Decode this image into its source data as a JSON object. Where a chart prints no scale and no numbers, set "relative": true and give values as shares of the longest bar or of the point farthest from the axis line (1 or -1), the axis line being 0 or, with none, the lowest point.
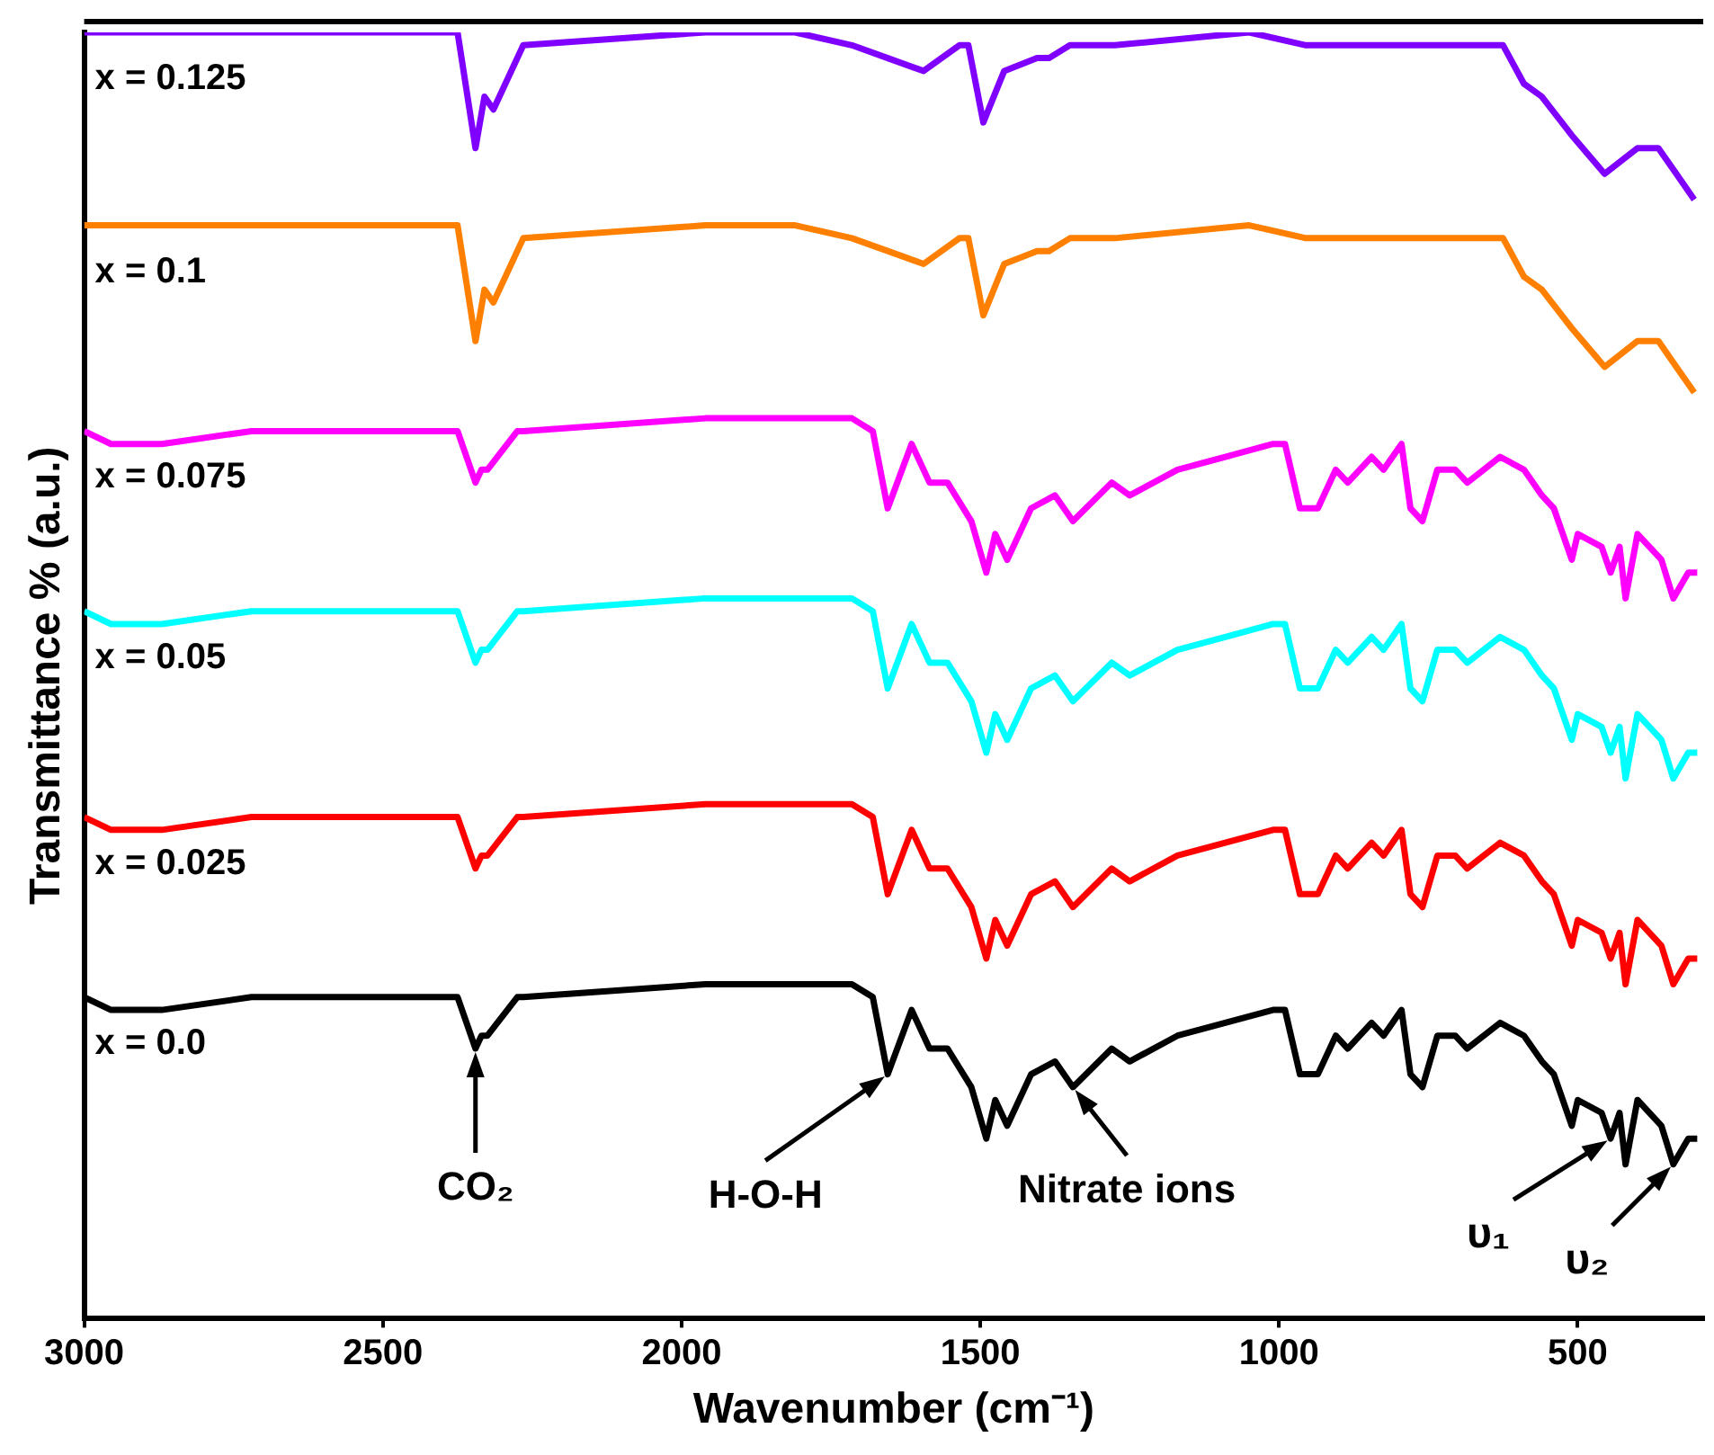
{
  "chart_data": {
    "type": "line",
    "xlabel": "Wavenumber (cm⁻¹)",
    "ylabel": "Transmittance % (a.u.)",
    "relative": true,
    "xlim": [
      3000,
      290
    ],
    "xticks": [
      3000,
      2500,
      2000,
      1500,
      1000,
      500
    ],
    "grid": false,
    "legend": false,
    "marker": "none",
    "line_style": "solid",
    "x": [
      3000,
      2955,
      2870,
      2720,
      2375,
      2345,
      2335,
      2325,
      2275,
      2265,
      1960,
      1750,
      1715,
      1680,
      1655,
      1615,
      1585,
      1555,
      1515,
      1490,
      1475,
      1455,
      1415,
      1375,
      1345,
      1280,
      1250,
      1170,
      1090,
      1010,
      990,
      965,
      935,
      905,
      885,
      845,
      825,
      795,
      780,
      760,
      735,
      705,
      685,
      630,
      590,
      560,
      540,
      510,
      500,
      460,
      445,
      430,
      420,
      400,
      360,
      340,
      315,
      300
    ],
    "series": [
      {
        "name": "x = 0.0",
        "color": "#000000",
        "values": [
          0.25,
          0.24,
          0.24,
          0.25,
          0.25,
          0.21,
          0.22,
          0.22,
          0.25,
          0.25,
          0.26,
          0.26,
          0.26,
          0.25,
          0.19,
          0.24,
          0.21,
          0.21,
          0.18,
          0.14,
          0.17,
          0.15,
          0.19,
          0.2,
          0.18,
          0.21,
          0.2,
          0.22,
          0.23,
          0.24,
          0.24,
          0.19,
          0.19,
          0.22,
          0.21,
          0.23,
          0.22,
          0.24,
          0.19,
          0.18,
          0.22,
          0.22,
          0.21,
          0.23,
          0.22,
          0.2,
          0.19,
          0.15,
          0.17,
          0.16,
          0.14,
          0.16,
          0.12,
          0.17,
          0.15,
          0.12,
          0.14,
          0.14
        ]
      },
      {
        "name": "x = 0.025",
        "color": "#ff0000",
        "values": [
          0.39,
          0.38,
          0.38,
          0.39,
          0.39,
          0.35,
          0.36,
          0.36,
          0.39,
          0.39,
          0.4,
          0.4,
          0.4,
          0.39,
          0.33,
          0.38,
          0.35,
          0.35,
          0.32,
          0.28,
          0.31,
          0.29,
          0.33,
          0.34,
          0.32,
          0.35,
          0.34,
          0.36,
          0.37,
          0.38,
          0.38,
          0.33,
          0.33,
          0.36,
          0.35,
          0.37,
          0.36,
          0.38,
          0.33,
          0.32,
          0.36,
          0.36,
          0.35,
          0.37,
          0.36,
          0.34,
          0.33,
          0.29,
          0.31,
          0.3,
          0.28,
          0.3,
          0.26,
          0.31,
          0.29,
          0.26,
          0.28,
          0.28
        ]
      },
      {
        "name": "x = 0.05",
        "color": "#00ffff",
        "values": [
          0.55,
          0.54,
          0.54,
          0.55,
          0.55,
          0.51,
          0.52,
          0.52,
          0.55,
          0.55,
          0.56,
          0.56,
          0.56,
          0.55,
          0.49,
          0.54,
          0.51,
          0.51,
          0.48,
          0.44,
          0.47,
          0.45,
          0.49,
          0.5,
          0.48,
          0.51,
          0.5,
          0.52,
          0.53,
          0.54,
          0.54,
          0.49,
          0.49,
          0.52,
          0.51,
          0.53,
          0.52,
          0.54,
          0.49,
          0.48,
          0.52,
          0.52,
          0.51,
          0.53,
          0.52,
          0.5,
          0.49,
          0.45,
          0.47,
          0.46,
          0.44,
          0.46,
          0.42,
          0.47,
          0.45,
          0.42,
          0.44,
          0.44
        ]
      },
      {
        "name": "x = 0.075",
        "color": "#ff00ff",
        "values": [
          0.69,
          0.68,
          0.68,
          0.69,
          0.69,
          0.65,
          0.66,
          0.66,
          0.69,
          0.69,
          0.7,
          0.7,
          0.7,
          0.69,
          0.63,
          0.68,
          0.65,
          0.65,
          0.62,
          0.58,
          0.61,
          0.59,
          0.63,
          0.64,
          0.62,
          0.65,
          0.64,
          0.66,
          0.67,
          0.68,
          0.68,
          0.63,
          0.63,
          0.66,
          0.65,
          0.67,
          0.66,
          0.68,
          0.63,
          0.62,
          0.66,
          0.66,
          0.65,
          0.67,
          0.66,
          0.64,
          0.63,
          0.59,
          0.61,
          0.6,
          0.58,
          0.6,
          0.56,
          0.61,
          0.59,
          0.56,
          0.58,
          0.58
        ]
      },
      {
        "name": "x = 0.1",
        "color": "#ff8000",
        "x": [
          3000,
          2375,
          2345,
          2330,
          2315,
          2265,
          1960,
          1810,
          1715,
          1655,
          1595,
          1535,
          1520,
          1495,
          1460,
          1405,
          1385,
          1350,
          1275,
          1050,
          955,
          805,
          775,
          640,
          625,
          590,
          560,
          510,
          455,
          400,
          365,
          335,
          305
        ],
        "values": [
          0.85,
          0.85,
          0.76,
          0.8,
          0.79,
          0.84,
          0.85,
          0.85,
          0.84,
          0.83,
          0.82,
          0.84,
          0.84,
          0.78,
          0.82,
          0.83,
          0.83,
          0.84,
          0.84,
          0.85,
          0.84,
          0.84,
          0.84,
          0.84,
          0.84,
          0.81,
          0.8,
          0.77,
          0.74,
          0.76,
          0.76,
          0.74,
          0.72
        ]
      },
      {
        "name": "x = 0.125",
        "color": "#8000ff",
        "x": [
          3000,
          2375,
          2345,
          2330,
          2315,
          2265,
          1960,
          1810,
          1715,
          1655,
          1595,
          1535,
          1520,
          1495,
          1460,
          1405,
          1385,
          1350,
          1275,
          1050,
          955,
          805,
          775,
          640,
          625,
          590,
          560,
          510,
          455,
          400,
          365,
          335,
          305
        ],
        "values": [
          1.0,
          1.0,
          0.91,
          0.95,
          0.94,
          0.99,
          1.0,
          1.0,
          0.99,
          0.98,
          0.97,
          0.99,
          0.99,
          0.93,
          0.97,
          0.98,
          0.98,
          0.99,
          0.99,
          1.0,
          0.99,
          0.99,
          0.99,
          0.99,
          0.99,
          0.96,
          0.95,
          0.92,
          0.89,
          0.91,
          0.91,
          0.89,
          0.87
        ]
      }
    ],
    "annotations": [
      {
        "text": "CO₂",
        "x": 2345,
        "y": 0.21
      },
      {
        "text": "H-O-H",
        "x": 1655,
        "y": 0.19
      },
      {
        "text": "Nitrate ions",
        "x": 1345,
        "y": 0.18
      },
      {
        "text": "υ₁",
        "x": 445,
        "y": 0.14
      },
      {
        "text": "υ₂",
        "x": 340,
        "y": 0.12
      }
    ]
  }
}
